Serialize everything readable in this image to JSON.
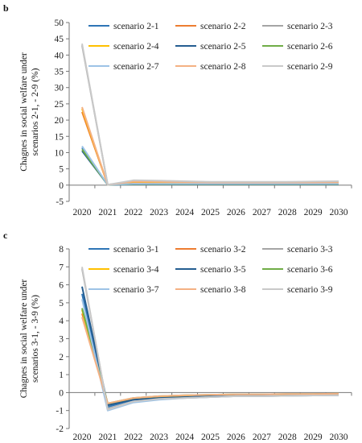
{
  "chart_data": [
    {
      "type": "line",
      "panel_label": "b",
      "ylabel": "Chagnes in social welfare under scenarios 2-1, - 2-9 (%)",
      "ylabel_lines": [
        "Chagnes in social welfare under",
        "scenarios 2-1, - 2-9 (%)"
      ],
      "categories": [
        "2020",
        "2021",
        "2022",
        "2023",
        "2024",
        "2025",
        "2026",
        "2027",
        "2028",
        "2029",
        "2030"
      ],
      "ylim": [
        -5,
        50
      ],
      "yticks": [
        -5,
        0,
        5,
        10,
        15,
        20,
        25,
        30,
        35,
        40,
        45,
        50
      ],
      "grid": false,
      "legend": "top-right",
      "series": [
        {
          "name": "scenario 2-1",
          "color": "#2e75b6",
          "values": [
            11.5,
            0.1,
            0.3,
            0.3,
            0.3,
            0.3,
            0.3,
            0.3,
            0.3,
            0.3,
            0.3
          ]
        },
        {
          "name": "scenario 2-2",
          "color": "#ed7d31",
          "values": [
            22.5,
            0.1,
            0.9,
            0.8,
            0.7,
            0.6,
            0.6,
            0.6,
            0.6,
            0.6,
            0.7
          ]
        },
        {
          "name": "scenario 2-3",
          "color": "#a5a5a5",
          "values": [
            43.0,
            0.1,
            1.2,
            1.1,
            1.0,
            0.8,
            0.8,
            0.8,
            0.8,
            0.9,
            0.9
          ]
        },
        {
          "name": "scenario 2-4",
          "color": "#ffc000",
          "values": [
            23.5,
            0.1,
            1.0,
            0.9,
            0.8,
            0.7,
            0.7,
            0.7,
            0.7,
            0.7,
            0.8
          ]
        },
        {
          "name": "scenario 2-5",
          "color": "#255e91",
          "values": [
            10.5,
            0.1,
            0.2,
            0.2,
            0.2,
            0.2,
            0.2,
            0.2,
            0.2,
            0.2,
            0.2
          ]
        },
        {
          "name": "scenario 2-6",
          "color": "#70ad47",
          "values": [
            11.0,
            0.1,
            0.3,
            0.3,
            0.3,
            0.3,
            0.3,
            0.3,
            0.3,
            0.3,
            0.3
          ]
        },
        {
          "name": "scenario 2-7",
          "color": "#9dc3e6",
          "values": [
            12.0,
            0.1,
            0.4,
            0.4,
            0.4,
            0.4,
            0.4,
            0.4,
            0.4,
            0.4,
            0.4
          ]
        },
        {
          "name": "scenario 2-8",
          "color": "#f4b183",
          "values": [
            24.0,
            0.1,
            1.1,
            1.0,
            0.9,
            0.8,
            0.8,
            0.8,
            0.8,
            0.8,
            0.9
          ]
        },
        {
          "name": "scenario 2-9",
          "color": "#c9c9c9",
          "values": [
            43.5,
            0.1,
            1.5,
            1.4,
            1.2,
            1.0,
            1.0,
            1.0,
            1.0,
            1.1,
            1.2
          ]
        }
      ]
    },
    {
      "type": "line",
      "panel_label": "c",
      "ylabel": "Chagnes in social welfare under scenarios 3-1, - 3-9 (%)",
      "ylabel_lines": [
        "Chagnes in social welfare under",
        "scenarios 3-1, - 3-9 (%)"
      ],
      "categories": [
        "2020",
        "2021",
        "2022",
        "2023",
        "2024",
        "2025",
        "2026",
        "2027",
        "2028",
        "2029",
        "2030"
      ],
      "ylim": [
        -2,
        8
      ],
      "yticks": [
        -2,
        -1,
        0,
        1,
        2,
        3,
        4,
        5,
        6,
        7,
        8
      ],
      "grid": false,
      "legend": "top-right",
      "series": [
        {
          "name": "scenario 3-1",
          "color": "#2e75b6",
          "values": [
            5.5,
            -0.8,
            -0.4,
            -0.3,
            -0.25,
            -0.2,
            -0.15,
            -0.15,
            -0.12,
            -0.12,
            -0.1
          ]
        },
        {
          "name": "scenario 3-2",
          "color": "#ed7d31",
          "values": [
            4.4,
            -0.6,
            -0.35,
            -0.25,
            -0.2,
            -0.15,
            -0.12,
            -0.12,
            -0.1,
            -0.1,
            -0.1
          ]
        },
        {
          "name": "scenario 3-3",
          "color": "#a5a5a5",
          "values": [
            6.9,
            -0.9,
            -0.5,
            -0.35,
            -0.3,
            -0.25,
            -0.2,
            -0.2,
            -0.18,
            -0.16,
            -0.15
          ]
        },
        {
          "name": "scenario 3-4",
          "color": "#ffc000",
          "values": [
            4.6,
            -0.7,
            -0.35,
            -0.25,
            -0.2,
            -0.15,
            -0.12,
            -0.12,
            -0.1,
            -0.1,
            -0.1
          ]
        },
        {
          "name": "scenario 3-5",
          "color": "#255e91",
          "values": [
            5.9,
            -0.7,
            -0.4,
            -0.3,
            -0.25,
            -0.2,
            -0.15,
            -0.15,
            -0.12,
            -0.12,
            -0.1
          ]
        },
        {
          "name": "scenario 3-6",
          "color": "#70ad47",
          "values": [
            4.7,
            -0.6,
            -0.3,
            -0.2,
            -0.15,
            -0.12,
            -0.1,
            -0.1,
            -0.08,
            -0.08,
            -0.06
          ]
        },
        {
          "name": "scenario 3-7",
          "color": "#9dc3e6",
          "values": [
            5.2,
            -1.0,
            -0.55,
            -0.4,
            -0.3,
            -0.25,
            -0.2,
            -0.2,
            -0.18,
            -0.16,
            -0.15
          ]
        },
        {
          "name": "scenario 3-8",
          "color": "#f4b183",
          "values": [
            4.2,
            -0.6,
            -0.3,
            -0.2,
            -0.15,
            -0.12,
            -0.1,
            -0.1,
            -0.08,
            -0.08,
            -0.06
          ]
        },
        {
          "name": "scenario 3-9",
          "color": "#c9c9c9",
          "values": [
            7.0,
            -0.95,
            -0.5,
            -0.35,
            -0.3,
            -0.25,
            -0.2,
            -0.2,
            -0.18,
            -0.16,
            -0.15
          ]
        }
      ]
    }
  ]
}
